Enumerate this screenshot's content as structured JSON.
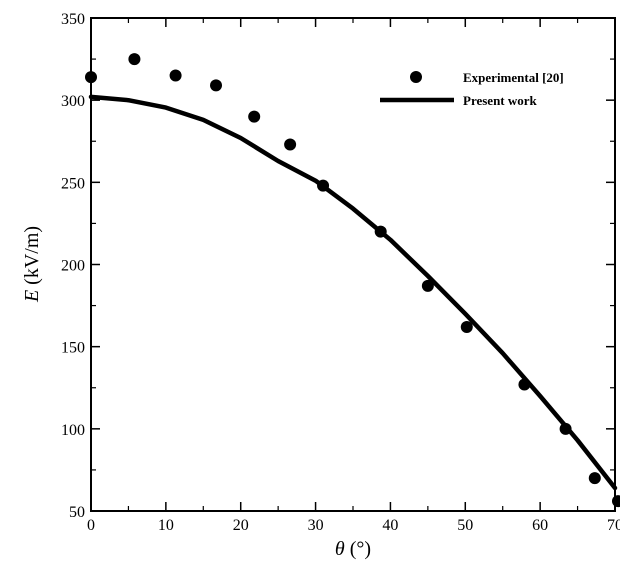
{
  "chart_data": {
    "type": "scatter",
    "xlabel": {
      "symbol": "θ",
      "unit": " (°)"
    },
    "ylabel": {
      "symbol": "E",
      "unit": " (kV/m)"
    },
    "xlim": [
      0,
      70
    ],
    "ylim": [
      50,
      350
    ],
    "xticks": [
      "0",
      "10",
      "20",
      "30",
      "40",
      "50",
      "60",
      "70"
    ],
    "yticks": [
      "50",
      "100",
      "150",
      "200",
      "250",
      "300",
      "350"
    ],
    "grid": false,
    "legend_position": "top-right",
    "series": [
      {
        "name": "Experimental [20]",
        "kind": "scatter",
        "color": "#000000",
        "points": [
          [
            0,
            314
          ],
          [
            5.8,
            325
          ],
          [
            11.3,
            315
          ],
          [
            16.7,
            309
          ],
          [
            21.8,
            290
          ],
          [
            26.6,
            273
          ],
          [
            31.0,
            248
          ],
          [
            38.7,
            220
          ],
          [
            45.0,
            187
          ],
          [
            50.2,
            162
          ],
          [
            57.9,
            127
          ],
          [
            63.4,
            100
          ],
          [
            67.3,
            70
          ],
          [
            70.4,
            56
          ]
        ]
      },
      {
        "name": "Present work",
        "kind": "line",
        "color": "#000000",
        "points": [
          [
            0,
            302
          ],
          [
            5,
            300
          ],
          [
            10,
            295.5
          ],
          [
            15,
            288
          ],
          [
            20,
            277
          ],
          [
            25,
            263
          ],
          [
            30,
            251
          ],
          [
            35,
            234
          ],
          [
            40,
            215
          ],
          [
            45,
            193
          ],
          [
            50,
            170
          ],
          [
            55,
            146
          ],
          [
            60,
            120
          ],
          [
            65,
            93
          ],
          [
            70,
            64
          ]
        ]
      }
    ]
  }
}
